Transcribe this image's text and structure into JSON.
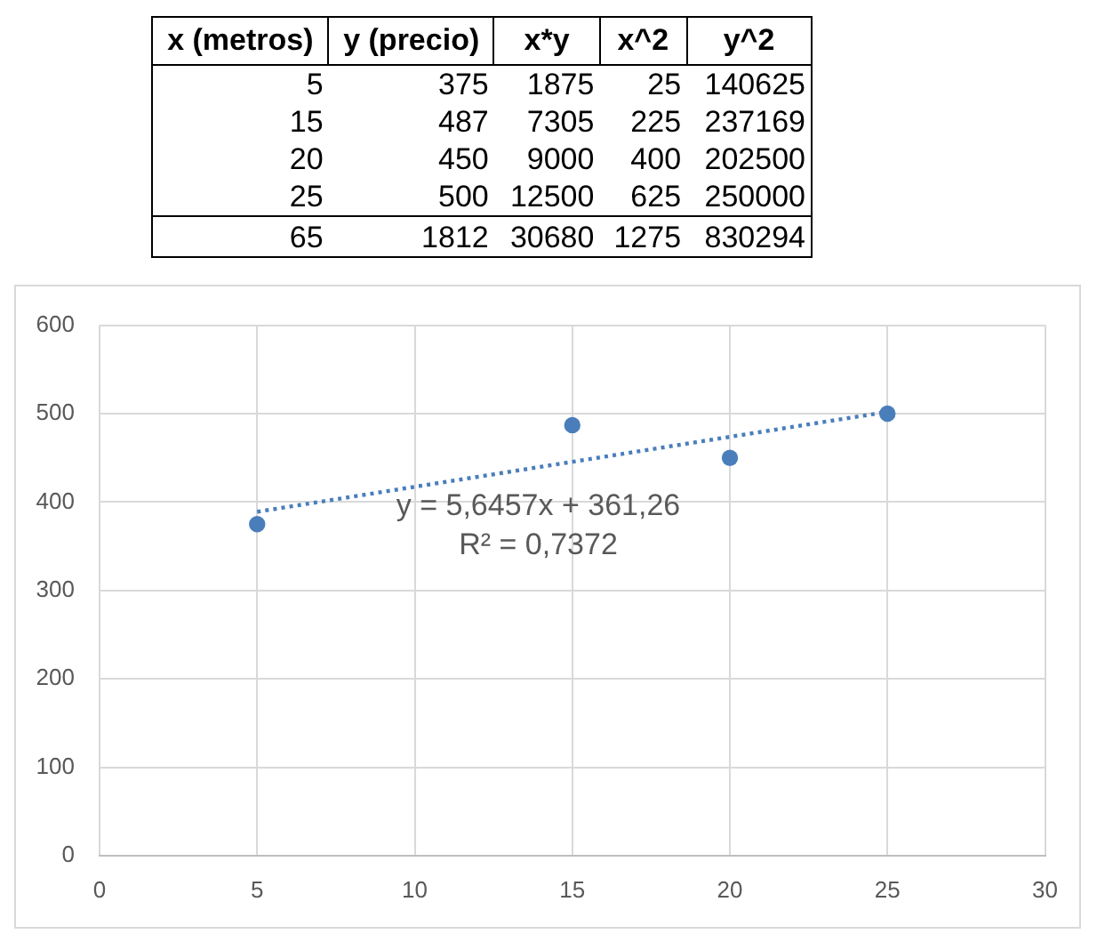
{
  "chart_data": [
    {
      "type": "other",
      "categories": [
        "x (metros)",
        "y (precio)",
        "x*y",
        "x^2",
        "y^2"
      ],
      "cell_labels": [
        [
          "5",
          "375",
          "1875",
          "25",
          "140625"
        ],
        [
          "15",
          "487",
          "7305",
          "225",
          "237169"
        ],
        [
          "20",
          "450",
          "9000",
          "400",
          "202500"
        ],
        [
          "25",
          "500",
          "12500",
          "625",
          "250000"
        ]
      ],
      "totals": [
        "65",
        "1812",
        "30680",
        "1275",
        "830294"
      ]
    },
    {
      "type": "scatter",
      "x": [
        5,
        15,
        20,
        25
      ],
      "series": [
        {
          "type": "scatter",
          "color": "#4a7ebb",
          "values": [
            375,
            487,
            450,
            500
          ]
        },
        {
          "type": "line",
          "x": [
            5,
            25
          ],
          "values": [
            389,
            502
          ],
          "color": "#4a7ebb",
          "line_style": "dotted",
          "marker": "none"
        }
      ],
      "xlim": [
        0,
        30
      ],
      "xticks": [
        0,
        5,
        10,
        15,
        20,
        25,
        30
      ],
      "ylim": [
        0,
        600
      ],
      "yticks": [
        0,
        100,
        200,
        300,
        400,
        500,
        600
      ],
      "grid": true,
      "marker": "circle",
      "annotations": [
        "y = 5,6457x + 361,26",
        "R² = 0,7372"
      ]
    }
  ]
}
